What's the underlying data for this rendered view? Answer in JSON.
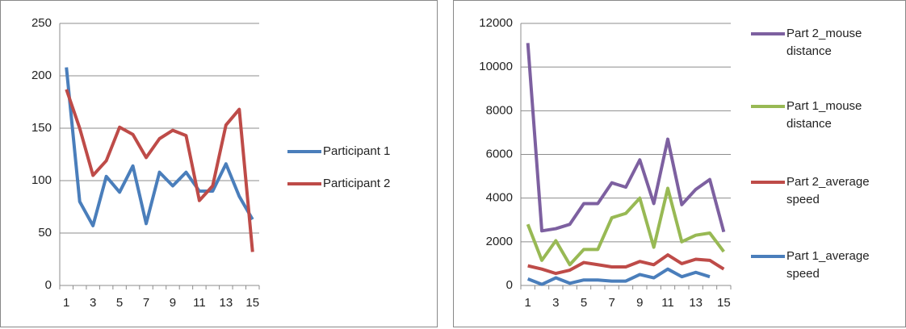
{
  "chart_data": [
    {
      "type": "line",
      "categories": [
        1,
        null,
        3,
        null,
        5,
        null,
        7,
        null,
        9,
        null,
        11,
        null,
        13,
        null,
        15
      ],
      "ylim": [
        0,
        250
      ],
      "yticks": [
        0,
        50,
        100,
        150,
        200,
        250
      ],
      "grid": true,
      "legend": "right",
      "series": [
        {
          "name": "Participant 1",
          "color": "#4a7ebb",
          "values": [
            208,
            80,
            57,
            104,
            89,
            114,
            59,
            108,
            95,
            108,
            90,
            90,
            116,
            85,
            63
          ]
        },
        {
          "name": "Participant 2",
          "color": "#be4b48",
          "values": [
            187,
            150,
            105,
            119,
            151,
            144,
            122,
            140,
            148,
            143,
            81,
            95,
            153,
            168,
            32
          ]
        }
      ]
    },
    {
      "type": "line",
      "categories": [
        1,
        null,
        3,
        null,
        5,
        null,
        7,
        null,
        9,
        null,
        11,
        null,
        13,
        null,
        15
      ],
      "ylim": [
        0,
        12000
      ],
      "yticks": [
        0,
        2000,
        4000,
        6000,
        8000,
        10000,
        12000
      ],
      "grid": true,
      "legend": "right",
      "series": [
        {
          "name": "Part 2_mouse distance",
          "color": "#7d60a0",
          "values": [
            11100,
            2500,
            2600,
            2800,
            3750,
            3750,
            4700,
            4500,
            5750,
            3750,
            6700,
            3700,
            4400,
            4850,
            2450
          ]
        },
        {
          "name": "Part 1_mouse distance",
          "color": "#98b954",
          "values": [
            2800,
            1150,
            2050,
            950,
            1650,
            1650,
            3100,
            3300,
            4000,
            1750,
            4450,
            2000,
            2300,
            2400,
            1550
          ]
        },
        {
          "name": "Part 2_average speed",
          "color": "#be4b48",
          "values": [
            900,
            750,
            550,
            700,
            1050,
            950,
            850,
            850,
            1100,
            950,
            1400,
            1000,
            1200,
            1150,
            750
          ]
        },
        {
          "name": "Part 1_average speed",
          "color": "#4a7ebb",
          "values": [
            300,
            50,
            350,
            100,
            250,
            250,
            200,
            200,
            500,
            350,
            750,
            400,
            600,
            400,
            null
          ]
        }
      ]
    }
  ]
}
